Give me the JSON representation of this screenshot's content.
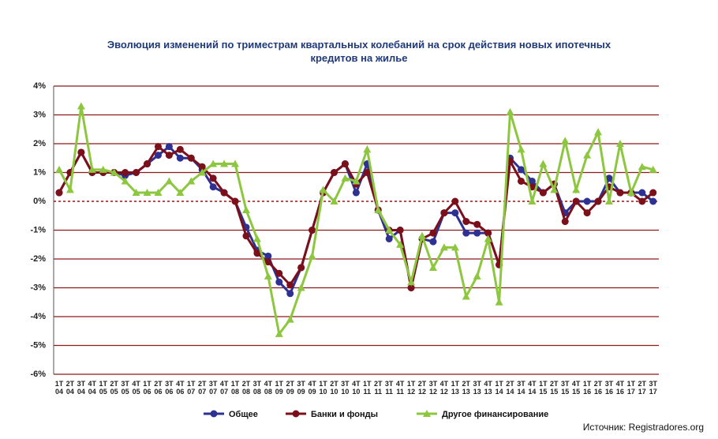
{
  "chart_data": {
    "type": "line",
    "title": "Эволюция изменений по триместрам квартальных колебаний на срок действия новых ипотечных кредитов на жилье",
    "source": "Источник: Registradores.org",
    "categories": [
      "1T\n04",
      "2T\n04",
      "3T\n04",
      "4T\n04",
      "1T\n05",
      "2T\n05",
      "3T\n05",
      "4T\n05",
      "1T\n06",
      "2T\n06",
      "3T\n06",
      "4T\n06",
      "1T\n07",
      "2T\n07",
      "3T\n07",
      "4T\n07",
      "1T\n08",
      "2T\n08",
      "3T\n08",
      "4T\n08",
      "1T\n09",
      "2T\n09",
      "3T\n09",
      "4T\n09",
      "1T\n10",
      "2T\n10",
      "3T\n10",
      "4T\n10",
      "1T\n11",
      "2T\n11",
      "3T\n11",
      "4T\n11",
      "1T\n12",
      "2T\n12",
      "3T\n12",
      "4T\n12",
      "1T\n13",
      "2T\n13",
      "3T\n13",
      "4T\n13",
      "1T\n14",
      "2T\n14",
      "3T\n14",
      "4T\n14",
      "1T\n15",
      "2T\n15",
      "3T\n15",
      "4T\n15",
      "1T\n16",
      "2T\n16",
      "3T\n16",
      "4T\n16",
      "1T\n17",
      "2T\n17",
      "3T\n17"
    ],
    "series": [
      {
        "name": "Общее",
        "color": "#2e3192",
        "values": [
          0.3,
          1.0,
          1.7,
          1.0,
          1.0,
          1.0,
          0.9,
          1.0,
          1.3,
          1.6,
          1.9,
          1.5,
          1.5,
          1.1,
          0.5,
          0.3,
          0.0,
          -0.9,
          -1.7,
          -1.9,
          -2.8,
          -3.2,
          -2.3,
          -1.0,
          0.3,
          1.0,
          1.3,
          0.3,
          1.3,
          -0.3,
          -1.3,
          -1.0,
          -3.0,
          -1.3,
          -1.4,
          -0.4,
          -0.4,
          -1.1,
          -1.1,
          -1.1,
          -2.2,
          1.5,
          1.1,
          0.7,
          0.3,
          0.6,
          -0.4,
          0.0,
          0.0,
          0.0,
          0.8,
          0.3,
          0.3,
          0.3,
          0.0
        ]
      },
      {
        "name": "Банки и фонды",
        "color": "#7b0f1a",
        "values": [
          0.3,
          1.0,
          1.7,
          1.0,
          1.0,
          1.0,
          1.0,
          1.0,
          1.3,
          1.9,
          1.6,
          1.8,
          1.5,
          1.2,
          0.8,
          0.3,
          0.0,
          -1.2,
          -1.8,
          -2.1,
          -2.5,
          -2.9,
          -2.3,
          -1.0,
          0.3,
          1.0,
          1.3,
          0.6,
          1.0,
          -0.3,
          -1.0,
          -1.0,
          -3.0,
          -1.3,
          -1.1,
          -0.4,
          0.0,
          -0.7,
          -0.8,
          -1.1,
          -2.2,
          1.4,
          0.7,
          0.5,
          0.3,
          0.6,
          -0.7,
          0.0,
          -0.4,
          0.0,
          0.5,
          0.3,
          0.3,
          0.0,
          0.3
        ]
      },
      {
        "name": "Другое финансирование",
        "color": "#8dc63f",
        "values": [
          1.1,
          0.4,
          3.3,
          1.1,
          1.1,
          1.0,
          0.7,
          0.3,
          0.3,
          0.3,
          0.7,
          0.3,
          0.7,
          1.0,
          1.3,
          1.3,
          1.3,
          -0.3,
          -1.3,
          -2.6,
          -4.6,
          -4.1,
          -3.0,
          -1.9,
          0.4,
          0.0,
          0.8,
          0.7,
          1.8,
          -0.3,
          -1.0,
          -1.5,
          -2.8,
          -1.2,
          -2.3,
          -1.6,
          -1.6,
          -3.3,
          -2.6,
          -1.3,
          -3.5,
          3.1,
          1.8,
          0.0,
          1.3,
          0.4,
          2.1,
          0.4,
          1.6,
          2.4,
          0.0,
          2.0,
          0.3,
          1.2,
          1.1
        ]
      }
    ],
    "ylim": [
      -6,
      4
    ],
    "yticks": [
      {
        "value": -6,
        "label": "-6%"
      },
      {
        "value": -5,
        "label": "-5%"
      },
      {
        "value": -4,
        "label": "-4%"
      },
      {
        "value": -3,
        "label": "-3%"
      },
      {
        "value": -2,
        "label": "-2%"
      },
      {
        "value": -1,
        "label": "-1%"
      },
      {
        "value": 0,
        "label": "0%"
      },
      {
        "value": 1,
        "label": "1%"
      },
      {
        "value": 2,
        "label": "2%"
      },
      {
        "value": 3,
        "label": "3%"
      },
      {
        "value": 4,
        "label": "4%"
      }
    ],
    "grid": true
  }
}
